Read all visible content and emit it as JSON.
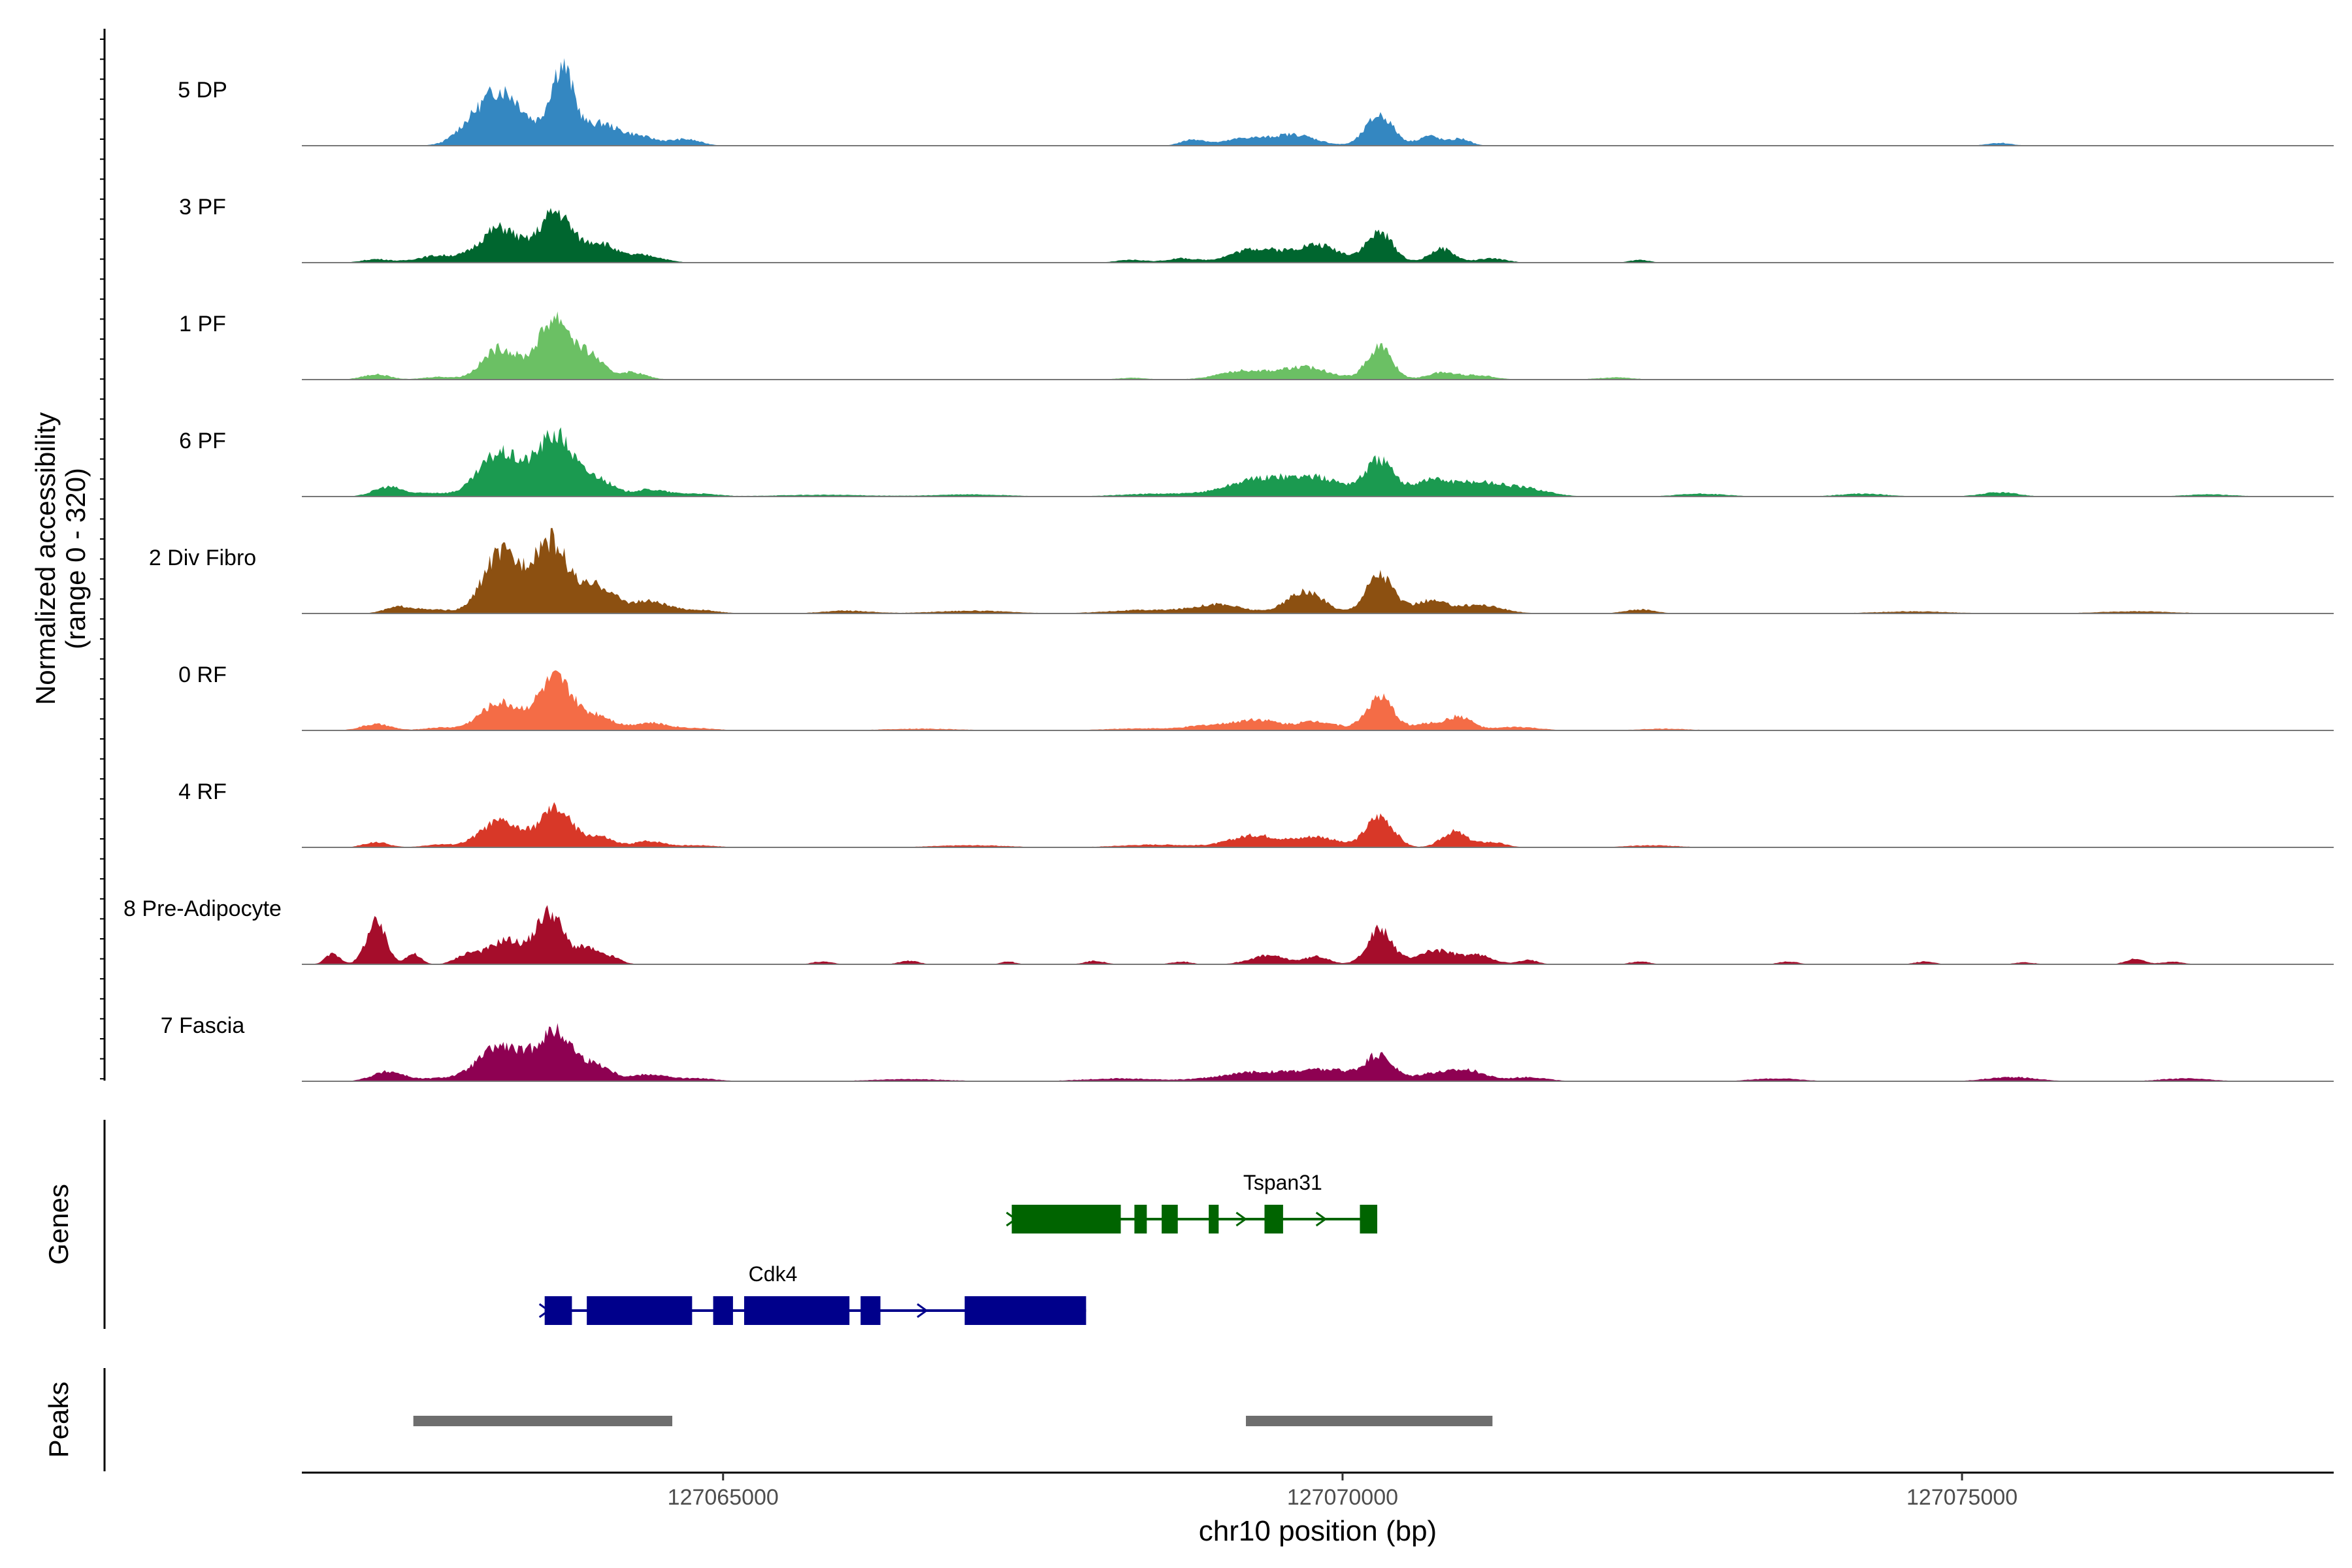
{
  "chart_data": {
    "type": "area",
    "title": "",
    "chromosome": "chr10",
    "xlabel": "chr10 position (bp)",
    "ylabel": "Normalized accessibility",
    "ylabel_range": "(range 0 - 320)",
    "ylim": [
      0,
      320
    ],
    "xlim": [
      127061600,
      127078000
    ],
    "xticks": [
      127065000,
      127070000,
      127075000
    ],
    "xtick_labels": [
      "127065000",
      "127070000",
      "127075000"
    ],
    "track_labels": {
      "genes": "Genes",
      "peaks": "Peaks"
    },
    "coverage_tracks": [
      {
        "name": "5 DP",
        "color": "#3487c1",
        "peaks": [
          [
            127062900,
            10,
            80
          ],
          [
            127063200,
            160,
            200
          ],
          [
            127063700,
            220,
            95
          ],
          [
            127064000,
            60,
            130
          ],
          [
            127064300,
            28,
            150
          ],
          [
            127064700,
            18,
            120
          ],
          [
            127068800,
            18,
            100
          ],
          [
            127069200,
            20,
            150
          ],
          [
            127069600,
            32,
            180
          ],
          [
            127070300,
            88,
            110
          ],
          [
            127070700,
            28,
            90
          ],
          [
            127070950,
            20,
            80
          ],
          [
            127075300,
            8,
            100
          ]
        ]
      },
      {
        "name": "3 PF",
        "color": "#00662f",
        "peaks": [
          [
            127062200,
            10,
            110
          ],
          [
            127062700,
            20,
            170
          ],
          [
            127063200,
            100,
            160
          ],
          [
            127063650,
            145,
            130
          ],
          [
            127064000,
            55,
            120
          ],
          [
            127064350,
            22,
            150
          ],
          [
            127068300,
            8,
            120
          ],
          [
            127068700,
            12,
            120
          ],
          [
            127069300,
            40,
            200
          ],
          [
            127069800,
            50,
            180
          ],
          [
            127070300,
            85,
            110
          ],
          [
            127070800,
            40,
            100
          ],
          [
            127071200,
            12,
            120
          ],
          [
            127072400,
            8,
            80
          ]
        ]
      },
      {
        "name": "1 PF",
        "color": "#6bc064",
        "peaks": [
          [
            127062200,
            15,
            110
          ],
          [
            127062700,
            8,
            120
          ],
          [
            127063200,
            90,
            140
          ],
          [
            127063650,
            180,
            140
          ],
          [
            127063950,
            55,
            90
          ],
          [
            127064250,
            22,
            120
          ],
          [
            127068300,
            5,
            120
          ],
          [
            127069200,
            25,
            200
          ],
          [
            127069700,
            35,
            200
          ],
          [
            127070300,
            95,
            100
          ],
          [
            127070800,
            20,
            120
          ],
          [
            127071100,
            12,
            130
          ],
          [
            127072200,
            6,
            150
          ]
        ]
      },
      {
        "name": "6 PF",
        "color": "#1b9a50",
        "peaks": [
          [
            127062300,
            28,
            120
          ],
          [
            127062650,
            10,
            120
          ],
          [
            127063200,
            125,
            170
          ],
          [
            127063650,
            175,
            150
          ],
          [
            127064000,
            45,
            110
          ],
          [
            127064400,
            20,
            150
          ],
          [
            127064800,
            8,
            150
          ],
          [
            127065800,
            5,
            400
          ],
          [
            127067000,
            6,
            300
          ],
          [
            127068500,
            8,
            300
          ],
          [
            127069300,
            45,
            250
          ],
          [
            127069800,
            50,
            250
          ],
          [
            127070300,
            100,
            110
          ],
          [
            127070700,
            45,
            150
          ],
          [
            127071100,
            40,
            200
          ],
          [
            127071500,
            20,
            180
          ],
          [
            127072900,
            8,
            200
          ],
          [
            127074200,
            8,
            200
          ],
          [
            127075300,
            12,
            150
          ],
          [
            127077000,
            6,
            200
          ]
        ]
      },
      {
        "name": "2 Div Fibro",
        "color": "#8c5011",
        "peaks": [
          [
            127062400,
            20,
            120
          ],
          [
            127062700,
            10,
            120
          ],
          [
            127063200,
            170,
            140
          ],
          [
            127063600,
            210,
            150
          ],
          [
            127064000,
            75,
            130
          ],
          [
            127064400,
            35,
            150
          ],
          [
            127064800,
            10,
            150
          ],
          [
            127066000,
            8,
            200
          ],
          [
            127067000,
            8,
            300
          ],
          [
            127068400,
            10,
            300
          ],
          [
            127069000,
            25,
            200
          ],
          [
            127069700,
            62,
            150
          ],
          [
            127070300,
            115,
            110
          ],
          [
            127070700,
            35,
            130
          ],
          [
            127071100,
            25,
            180
          ],
          [
            127072400,
            12,
            120
          ],
          [
            127074600,
            6,
            300
          ],
          [
            127076400,
            6,
            300
          ]
        ]
      },
      {
        "name": "0 RF",
        "color": "#f46c46",
        "peaks": [
          [
            127062200,
            18,
            120
          ],
          [
            127062700,
            8,
            120
          ],
          [
            127063200,
            80,
            160
          ],
          [
            127063650,
            150,
            140
          ],
          [
            127064000,
            40,
            110
          ],
          [
            127064400,
            22,
            160
          ],
          [
            127064800,
            6,
            150
          ],
          [
            127066600,
            5,
            300
          ],
          [
            127068400,
            6,
            300
          ],
          [
            127068900,
            12,
            150
          ],
          [
            127069300,
            32,
            180
          ],
          [
            127069800,
            26,
            160
          ],
          [
            127070300,
            95,
            110
          ],
          [
            127070700,
            20,
            120
          ],
          [
            127070950,
            38,
            100
          ],
          [
            127071400,
            10,
            180
          ],
          [
            127072600,
            5,
            200
          ]
        ]
      },
      {
        "name": "4 RF",
        "color": "#d83828",
        "peaks": [
          [
            127062200,
            15,
            100
          ],
          [
            127062700,
            8,
            120
          ],
          [
            127063200,
            75,
            160
          ],
          [
            127063650,
            110,
            130
          ],
          [
            127064000,
            30,
            110
          ],
          [
            127064400,
            18,
            130
          ],
          [
            127064800,
            6,
            150
          ],
          [
            127067000,
            6,
            300
          ],
          [
            127068500,
            8,
            300
          ],
          [
            127069300,
            35,
            200
          ],
          [
            127069800,
            30,
            160
          ],
          [
            127070300,
            90,
            110
          ],
          [
            127070900,
            45,
            100
          ],
          [
            127071200,
            15,
            110
          ],
          [
            127072500,
            6,
            200
          ]
        ]
      },
      {
        "name": "8 Pre-Adipocyte",
        "color": "#a50d2b",
        "peaks": [
          [
            127061850,
            30,
            60
          ],
          [
            127062200,
            120,
            80
          ],
          [
            127062500,
            30,
            60
          ],
          [
            127062950,
            30,
            100
          ],
          [
            127063250,
            70,
            130
          ],
          [
            127063600,
            150,
            110
          ],
          [
            127063900,
            45,
            90
          ],
          [
            127064100,
            20,
            80
          ],
          [
            127065800,
            8,
            80
          ],
          [
            127066500,
            10,
            80
          ],
          [
            127067300,
            8,
            60
          ],
          [
            127068000,
            10,
            80
          ],
          [
            127068700,
            8,
            80
          ],
          [
            127069400,
            25,
            150
          ],
          [
            127069800,
            22,
            100
          ],
          [
            127070300,
            100,
            100
          ],
          [
            127070750,
            40,
            150
          ],
          [
            127071100,
            25,
            120
          ],
          [
            127071500,
            12,
            80
          ],
          [
            127072400,
            8,
            80
          ],
          [
            127073600,
            8,
            80
          ],
          [
            127074700,
            8,
            80
          ],
          [
            127075500,
            6,
            80
          ],
          [
            127076400,
            15,
            80
          ],
          [
            127076700,
            8,
            80
          ]
        ]
      },
      {
        "name": "7 Fascia",
        "color": "#8e0152",
        "peaks": [
          [
            127062300,
            28,
            130
          ],
          [
            127062700,
            8,
            130
          ],
          [
            127063200,
            100,
            180
          ],
          [
            127063650,
            140,
            150
          ],
          [
            127064000,
            40,
            110
          ],
          [
            127064400,
            20,
            150
          ],
          [
            127064800,
            8,
            150
          ],
          [
            127066500,
            6,
            300
          ],
          [
            127068200,
            8,
            300
          ],
          [
            127069300,
            25,
            300
          ],
          [
            127069900,
            30,
            250
          ],
          [
            127070300,
            68,
            110
          ],
          [
            127070700,
            20,
            130
          ],
          [
            127071000,
            32,
            150
          ],
          [
            127071500,
            12,
            150
          ],
          [
            127073500,
            8,
            200
          ],
          [
            127075400,
            12,
            200
          ],
          [
            127076800,
            8,
            200
          ]
        ]
      }
    ],
    "genes": [
      {
        "name": "Tspan31",
        "color": "#006400",
        "strand": "+",
        "row": 0,
        "start": 127067330,
        "end": 127070280,
        "exons": [
          [
            127067330,
            127068210
          ],
          [
            127068320,
            127068420
          ],
          [
            127068540,
            127068670
          ],
          [
            127068920,
            127069000
          ],
          [
            127069370,
            127069520
          ],
          [
            127070140,
            127070280
          ]
        ]
      },
      {
        "name": "Cdk4",
        "color": "#00008b",
        "strand": "+",
        "row": 1,
        "start": 127063560,
        "end": 127067930,
        "exons": [
          [
            127063560,
            127063780
          ],
          [
            127063900,
            127064750
          ],
          [
            127064920,
            127065080
          ],
          [
            127065170,
            127066020
          ],
          [
            127066110,
            127066270
          ],
          [
            127066950,
            127067930
          ]
        ]
      }
    ],
    "peak_regions": [
      [
        127062500,
        127064590
      ],
      [
        127069220,
        127071210
      ]
    ]
  }
}
